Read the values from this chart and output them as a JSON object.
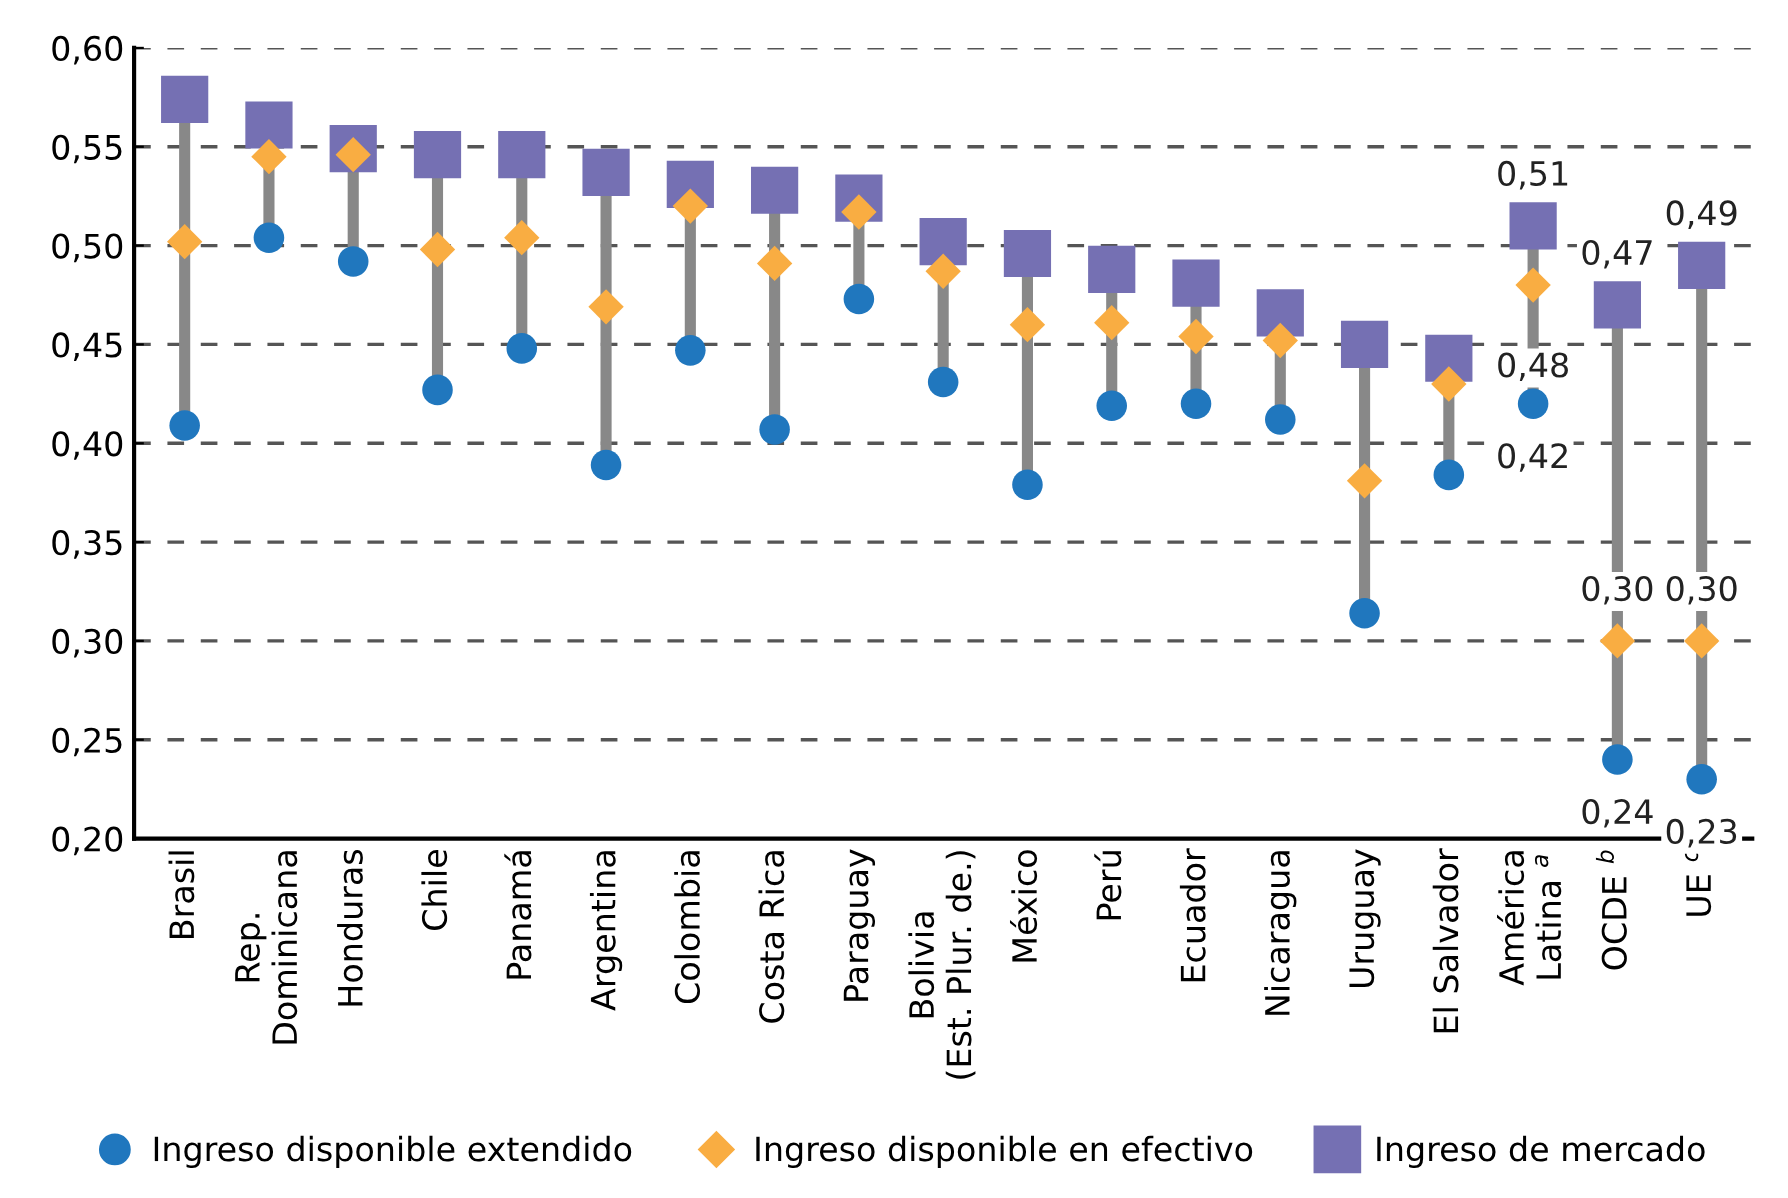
{
  "chart_data": {
    "type": "scatter",
    "categories": [
      "Brasil",
      "Rep.\nDominicana",
      "Honduras",
      "Chile",
      "Panamá",
      "Argentina",
      "Colombia",
      "Costa Rica",
      "Paraguay",
      "Bolivia\n(Est. Plur. de.)",
      "México",
      "Perú",
      "Ecuador",
      "Nicaragua",
      "Uruguay",
      "El Salvador",
      "América\nLatina $^{a}$",
      "OCDE $^{b}$",
      "UE $^{c}$"
    ],
    "series": [
      {
        "name": "Ingreso disponible extendido",
        "color": "#2077be",
        "marker": "circle",
        "values": [
          0.409,
          0.504,
          0.492,
          0.427,
          0.448,
          0.389,
          0.447,
          0.407,
          0.473,
          0.431,
          0.379,
          0.419,
          0.42,
          0.412,
          0.314,
          0.384,
          0.42,
          0.24,
          0.23
        ],
        "value_labels": [
          null,
          null,
          null,
          null,
          null,
          null,
          null,
          null,
          null,
          null,
          null,
          null,
          null,
          null,
          null,
          null,
          "0,42",
          "0,24",
          "0,23"
        ]
      },
      {
        "name": "Ingreso disponible en efectivo",
        "color": "#f9ad42",
        "marker": "diamond",
        "values": [
          0.502,
          0.545,
          0.546,
          0.498,
          0.504,
          0.469,
          0.52,
          0.491,
          0.517,
          0.487,
          0.46,
          0.461,
          0.454,
          0.452,
          0.381,
          0.43,
          0.48,
          0.3,
          0.3
        ],
        "value_labels": [
          null,
          null,
          null,
          null,
          null,
          null,
          null,
          null,
          null,
          null,
          null,
          null,
          null,
          null,
          null,
          null,
          "0,48",
          "0,30",
          "0,30"
        ]
      },
      {
        "name": "Ingreso de mercado",
        "color": "#7570b3",
        "marker": "square",
        "values": [
          0.574,
          0.561,
          0.549,
          0.546,
          0.546,
          0.537,
          0.531,
          0.528,
          0.524,
          0.502,
          0.496,
          0.488,
          0.481,
          0.466,
          0.45,
          0.443,
          0.51,
          0.47,
          0.49
        ],
        "value_labels": [
          null,
          null,
          null,
          null,
          null,
          null,
          null,
          null,
          null,
          null,
          null,
          null,
          null,
          null,
          null,
          null,
          "0,51",
          "0,47",
          "0,49"
        ]
      }
    ],
    "ylim": [
      0.2,
      0.6
    ],
    "yticks": [
      {
        "value": 0.2,
        "label": "0,20"
      },
      {
        "value": 0.25,
        "label": "0,25"
      },
      {
        "value": 0.3,
        "label": "0,30"
      },
      {
        "value": 0.35,
        "label": "0,35"
      },
      {
        "value": 0.4,
        "label": "0,40"
      },
      {
        "value": 0.45,
        "label": "0,45"
      },
      {
        "value": 0.5,
        "label": "0,50"
      },
      {
        "value": 0.55,
        "label": "0,55"
      },
      {
        "value": 0.6,
        "label": "0,60"
      }
    ],
    "grid": "y",
    "legend": "bottom"
  }
}
